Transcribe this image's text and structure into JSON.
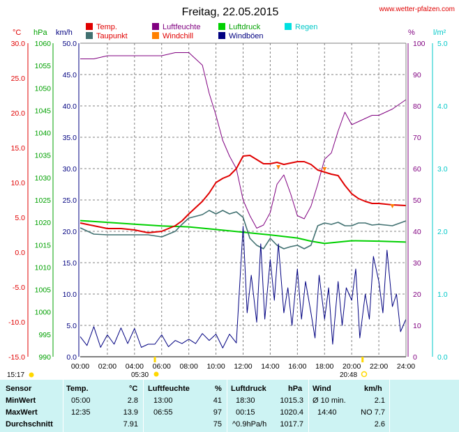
{
  "header": {
    "title": "Freitag, 22.05.2015",
    "site": "www.wetter-pfalzen.com"
  },
  "legend": [
    {
      "label": "Temp.",
      "color": "#e00000"
    },
    {
      "label": "Luftfeuchte",
      "color": "#800080"
    },
    {
      "label": "Luftdruck",
      "color": "#00d000"
    },
    {
      "label": "Regen",
      "color": "#00e0e0"
    },
    {
      "label": "Taupunkt",
      "color": "#407070"
    },
    {
      "label": "Windchill",
      "color": "#ff8000"
    },
    {
      "label": "Windböen",
      "color": "#000080"
    }
  ],
  "axes": {
    "temp_unit": "°C",
    "pressure_unit": "hPa",
    "wind_unit": "km/h",
    "humidity_unit": "%",
    "rain_unit": "l/m²",
    "temp_ticks": [
      "30.0",
      "25.0",
      "20.0",
      "15.0",
      "10.0",
      "5.0",
      "0.0",
      "-5.0",
      "-10.0",
      "-15.0"
    ],
    "pressure_ticks": [
      "1060",
      "1055",
      "1050",
      "1045",
      "1040",
      "1035",
      "1030",
      "1025",
      "1020",
      "1015",
      "1010",
      "1005",
      "1000",
      "995",
      "990"
    ],
    "wind_ticks": [
      "50.0",
      "45.0",
      "40.0",
      "35.0",
      "30.0",
      "25.0",
      "20.0",
      "15.0",
      "10.0",
      "5.0",
      "0.0"
    ],
    "humidity_ticks": [
      "100",
      "90",
      "80",
      "70",
      "60",
      "50",
      "40",
      "30",
      "20",
      "10",
      "0"
    ],
    "rain_ticks": [
      "5.0",
      "4.0",
      "3.0",
      "2.0",
      "1.0",
      "0.0"
    ],
    "time_ticks": [
      "00:00",
      "02:00",
      "04:00",
      "06:00",
      "08:00",
      "10:00",
      "12:00",
      "14:00",
      "16:00",
      "18:00",
      "20:00",
      "22:00",
      "24:00"
    ]
  },
  "sun": {
    "moonset": "15:17",
    "sunrise": "05:30",
    "sunset": "20:48"
  },
  "chart_data": {
    "type": "line",
    "title": "Freitag, 22.05.2015",
    "x_range": [
      "00:00",
      "24:00"
    ],
    "temp_ylim": [
      -15,
      30
    ],
    "pressure_ylim": [
      990,
      1060
    ],
    "wind_ylim": [
      0,
      50
    ],
    "humidity_ylim": [
      0,
      100
    ],
    "rain_ylim": [
      0,
      5
    ],
    "grid": true,
    "series": [
      {
        "name": "Temp.",
        "axis": "temp",
        "color": "#e00000",
        "x": [
          0,
          1,
          2,
          3,
          4,
          5,
          6,
          7,
          7.5,
          8,
          9,
          9.5,
          10,
          10.5,
          11,
          11.5,
          12,
          12.5,
          13,
          13.5,
          14,
          14.5,
          15,
          15.5,
          16,
          16.5,
          17,
          17.5,
          18,
          18.5,
          19,
          19.5,
          20,
          20.5,
          21,
          21.5,
          22,
          23,
          24
        ],
        "y": [
          4.2,
          3.8,
          3.4,
          3.4,
          3.2,
          2.8,
          3.0,
          3.8,
          4.5,
          5.5,
          7.3,
          8.5,
          10.0,
          10.6,
          11.0,
          12.0,
          13.8,
          13.9,
          13.3,
          12.7,
          12.7,
          12.9,
          12.6,
          12.8,
          13.0,
          13.0,
          12.6,
          11.8,
          11.5,
          11.2,
          11.0,
          9.6,
          8.4,
          7.7,
          7.3,
          7.0,
          7.0,
          6.8,
          6.7
        ]
      },
      {
        "name": "Taupunkt",
        "axis": "temp",
        "color": "#407070",
        "x": [
          0,
          1,
          2,
          3,
          4,
          5,
          6,
          7,
          7.5,
          8,
          9,
          9.5,
          10,
          10.5,
          11,
          11.5,
          12,
          12.5,
          13,
          13.5,
          14,
          14.5,
          15,
          15.5,
          16,
          16.5,
          17,
          17.5,
          18,
          18.5,
          19,
          19.5,
          20,
          20.5,
          21,
          21.5,
          22,
          23,
          24
        ],
        "y": [
          3.5,
          2.6,
          2.5,
          2.5,
          2.5,
          2.5,
          2.2,
          3.0,
          4.0,
          4.9,
          5.4,
          6.0,
          5.5,
          6.0,
          5.5,
          5.8,
          5.0,
          2.0,
          1.0,
          0.5,
          2.0,
          1.0,
          0.5,
          0.8,
          1.0,
          0.5,
          1.0,
          3.8,
          4.2,
          4.0,
          4.3,
          3.8,
          3.8,
          4.2,
          4.2,
          3.9,
          4.0,
          3.8,
          4.5
        ]
      },
      {
        "name": "Luftdruck",
        "axis": "pressure",
        "color": "#00d000",
        "x": [
          0,
          2,
          4,
          6,
          8,
          10,
          12,
          14,
          16,
          17,
          18,
          20,
          22,
          24
        ],
        "y": [
          1020.4,
          1020.0,
          1019.6,
          1019.2,
          1019.0,
          1018.4,
          1017.8,
          1017.2,
          1016.5,
          1015.8,
          1015.3,
          1015.9,
          1015.8,
          1015.6
        ]
      },
      {
        "name": "Luftfeuchte",
        "axis": "humidity",
        "color": "#800080",
        "x": [
          0,
          1,
          2,
          3,
          4,
          5,
          6,
          7,
          8,
          9,
          9.5,
          10,
          10.5,
          11,
          11.5,
          12,
          12.5,
          13,
          13.5,
          14,
          14.5,
          15,
          15.5,
          16,
          16.5,
          17,
          17.5,
          18,
          18.5,
          19,
          19.5,
          20,
          20.5,
          21,
          21.5,
          22,
          23,
          24
        ],
        "y": [
          95,
          95,
          96,
          96,
          96,
          96,
          96,
          97,
          97,
          93,
          84,
          77,
          69,
          64,
          60,
          50,
          45,
          41,
          42,
          46,
          55,
          58,
          52,
          45,
          44,
          48,
          55,
          63,
          65,
          72,
          78,
          74,
          75,
          76,
          77,
          77,
          79,
          82
        ]
      },
      {
        "name": "Windböen",
        "axis": "wind",
        "color": "#000080",
        "x": [
          0,
          0.5,
          1,
          1.5,
          2,
          2.5,
          3,
          3.5,
          4,
          4.5,
          5,
          5.5,
          6,
          6.5,
          7,
          7.5,
          8,
          8.5,
          9,
          9.5,
          10,
          10.5,
          11,
          11.5,
          12,
          12.3,
          12.6,
          13,
          13.3,
          13.6,
          14,
          14.3,
          14.6,
          15,
          15.3,
          15.6,
          16,
          16.3,
          16.6,
          17,
          17.3,
          17.6,
          18,
          18.3,
          18.6,
          19,
          19.3,
          19.6,
          20,
          20.3,
          20.6,
          21,
          21.3,
          21.6,
          22,
          22.3,
          22.6,
          23,
          23.3,
          23.6,
          24
        ],
        "y": [
          3.2,
          1.8,
          4.8,
          1.5,
          3.5,
          2.0,
          4.6,
          2.1,
          4.5,
          1.5,
          2.0,
          2.0,
          3.5,
          1.6,
          2.6,
          2.1,
          2.8,
          2.1,
          3.7,
          2.6,
          3.6,
          1.4,
          3.6,
          2.2,
          20.8,
          7.0,
          13.0,
          5.5,
          18.0,
          6.0,
          15.5,
          9.0,
          18.0,
          7.0,
          11.0,
          5.0,
          14.0,
          6.0,
          12.0,
          7.0,
          3.0,
          13.0,
          6.0,
          11.0,
          2.0,
          12.0,
          5.0,
          11.0,
          9.0,
          14.0,
          3.0,
          10.0,
          6.0,
          16.0,
          12.0,
          7.0,
          17.0,
          8.0,
          10.0,
          4.0,
          6.0
        ]
      },
      {
        "name": "Windchill",
        "axis": "temp",
        "color": "#ff8000",
        "x": [
          14.6,
          18.0,
          23.0
        ],
        "y": [
          12.2,
          11.9,
          6.6
        ]
      },
      {
        "name": "Regen",
        "axis": "rain",
        "color": "#00e0e0",
        "x": [
          0,
          24
        ],
        "y": [
          0,
          0
        ]
      }
    ]
  },
  "stats": {
    "headers": [
      "Sensor",
      "Temp.",
      "°C",
      "Luftfeuchte",
      "%",
      "Luftdruck",
      "hPa",
      "Wind",
      "km/h"
    ],
    "rows": [
      {
        "label": "MinWert",
        "temp_time": "05:00",
        "temp_val": "2.8",
        "hum_time": "13:00",
        "hum_val": "41",
        "press_time": "18:30",
        "press_val": "1015.3",
        "wind_time": "Ø 10 min.",
        "wind_val": "2.1"
      },
      {
        "label": "MaxWert",
        "temp_time": "12:35",
        "temp_val": "13.9",
        "hum_time": "06:55",
        "hum_val": "97",
        "press_time": "00:15",
        "press_val": "1020.4",
        "wind_time": "14:40",
        "wind_val": "NO 7.7"
      },
      {
        "label": "Durchschnitt",
        "temp_time": "",
        "temp_val": "7.91",
        "hum_time": "",
        "hum_val": "75",
        "press_time": "^0.9hPa/h",
        "press_val": "1017.7",
        "wind_time": "",
        "wind_val": "2.6"
      }
    ]
  }
}
